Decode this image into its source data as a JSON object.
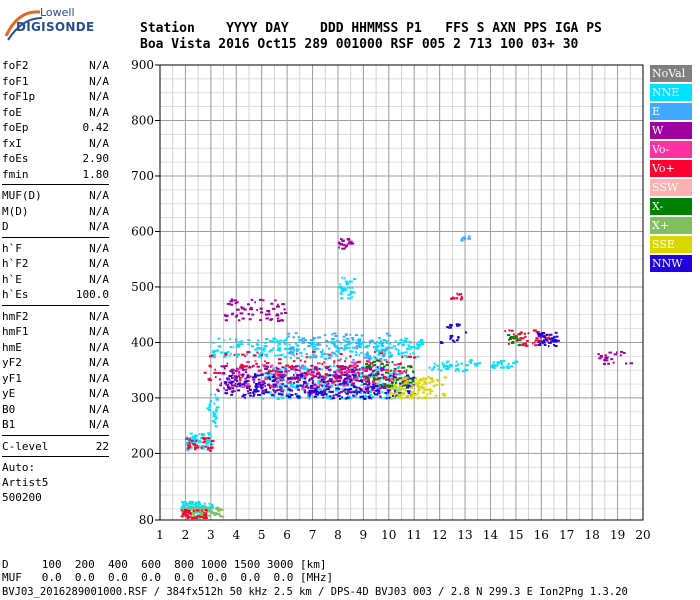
{
  "logo": {
    "line1": "Lowell",
    "line2": "DIGISONDE"
  },
  "header": {
    "labels": [
      "Station",
      "YYYY",
      "DAY",
      "DDD",
      "HHMMSS",
      "P1",
      "FFS",
      "S",
      "AXN",
      "PPS",
      "IGA",
      "PS"
    ],
    "values": [
      "Boa Vista",
      "2016",
      "Oct15",
      "289",
      "001000",
      "RSF",
      "005",
      "2",
      "713",
      "100",
      "03+",
      "30"
    ]
  },
  "params": {
    "group1": [
      {
        "name": "foF2",
        "value": "N/A"
      },
      {
        "name": "foF1",
        "value": "N/A"
      },
      {
        "name": "foF1p",
        "value": "N/A"
      },
      {
        "name": "foE",
        "value": "N/A"
      },
      {
        "name": "foEp",
        "value": "0.42"
      },
      {
        "name": "fxI",
        "value": "N/A"
      },
      {
        "name": "foEs",
        "value": "2.90"
      },
      {
        "name": "fmin",
        "value": "1.80"
      }
    ],
    "group2": [
      {
        "name": "MUF(D)",
        "value": "N/A"
      },
      {
        "name": "M(D)",
        "value": "N/A"
      },
      {
        "name": "D",
        "value": "N/A"
      }
    ],
    "group3": [
      {
        "name": "h`F",
        "value": "N/A"
      },
      {
        "name": "h`F2",
        "value": "N/A"
      },
      {
        "name": "h`E",
        "value": "N/A"
      },
      {
        "name": "h`Es",
        "value": "100.0"
      }
    ],
    "group4": [
      {
        "name": "hmF2",
        "value": "N/A"
      },
      {
        "name": "hmF1",
        "value": "N/A"
      },
      {
        "name": "hmE",
        "value": "N/A"
      },
      {
        "name": "yF2",
        "value": "N/A"
      },
      {
        "name": "yF1",
        "value": "N/A"
      },
      {
        "name": "yE",
        "value": "N/A"
      },
      {
        "name": "B0",
        "value": "N/A"
      },
      {
        "name": "B1",
        "value": "N/A"
      }
    ],
    "group5": [
      {
        "name": "C-level",
        "value": "22"
      }
    ],
    "auto": [
      "Auto:",
      "Artist5",
      "500200"
    ]
  },
  "legend": [
    {
      "label": "NoVal",
      "color": "#808080"
    },
    {
      "label": "NNE",
      "color": "#00e0ff"
    },
    {
      "label": "E",
      "color": "#40a8ff"
    },
    {
      "label": "W",
      "color": "#a000a0"
    },
    {
      "label": "Vo-",
      "color": "#ff30a0"
    },
    {
      "label": "Vo+",
      "color": "#ff0030"
    },
    {
      "label": "SSW",
      "color": "#ffb0b0"
    },
    {
      "label": "X-",
      "color": "#008000"
    },
    {
      "label": "X+",
      "color": "#80c060"
    },
    {
      "label": "SSE",
      "color": "#d8d800"
    },
    {
      "label": "NNW",
      "color": "#2000e0"
    }
  ],
  "footer": {
    "d_row": "D     100  200  400  600  800 1000 1500 3000 [km]",
    "muf_row": "MUF   0.0  0.0  0.0  0.0  0.0  0.0  0.0  0.0 [MHz]",
    "note": "BVJ03_2016289001000.RSF / 384fx512h 50 kHz 2.5 km / DPS-4D BVJ03 003 / 2.8 N 299.3 E Ion2Png 1.3.20"
  },
  "chart_data": {
    "type": "scatter",
    "xlim": [
      1,
      20
    ],
    "ylim": [
      80,
      900
    ],
    "x_ticks": [
      1,
      2,
      3,
      4,
      5,
      6,
      7,
      8,
      9,
      10,
      11,
      12,
      13,
      14,
      15,
      16,
      17,
      18,
      19,
      20
    ],
    "y_ticks": [
      80,
      200,
      300,
      400,
      500,
      600,
      700,
      800,
      900
    ],
    "grid": true,
    "xlabel": "",
    "ylabel": "",
    "clusters": [
      {
        "series": "NNE",
        "x": [
          3.0,
          11.3
        ],
        "y": [
          375,
          410
        ],
        "n": 260
      },
      {
        "series": "NNE",
        "x": [
          5.0,
          10.5
        ],
        "y": [
          300,
          360
        ],
        "n": 320
      },
      {
        "series": "W",
        "x": [
          3.2,
          10.0
        ],
        "y": [
          310,
          360
        ],
        "n": 320
      },
      {
        "series": "NNW",
        "x": [
          3.5,
          11.0
        ],
        "y": [
          300,
          345
        ],
        "n": 260
      },
      {
        "series": "Vo+",
        "x": [
          2.5,
          11.0
        ],
        "y": [
          330,
          385
        ],
        "n": 120
      },
      {
        "series": "Vo-",
        "x": [
          4.0,
          10.5
        ],
        "y": [
          320,
          370
        ],
        "n": 80
      },
      {
        "series": "SSE",
        "x": [
          10.0,
          11.6
        ],
        "y": [
          300,
          340
        ],
        "n": 90
      },
      {
        "series": "X-",
        "x": [
          9.0,
          11.0
        ],
        "y": [
          320,
          370
        ],
        "n": 50
      },
      {
        "series": "E",
        "x": [
          6.0,
          10.0
        ],
        "y": [
          370,
          420
        ],
        "n": 100
      },
      {
        "series": "W",
        "x": [
          3.5,
          6.0
        ],
        "y": [
          440,
          480
        ],
        "n": 60
      },
      {
        "series": "NNE",
        "x": [
          8.0,
          8.6
        ],
        "y": [
          480,
          520
        ],
        "n": 30
      },
      {
        "series": "W",
        "x": [
          8.0,
          8.5
        ],
        "y": [
          570,
          590
        ],
        "n": 20
      },
      {
        "series": "NNE",
        "x": [
          2.0,
          3.0
        ],
        "y": [
          208,
          240
        ],
        "n": 70
      },
      {
        "series": "Vo+",
        "x": [
          2.0,
          3.0
        ],
        "y": [
          205,
          230
        ],
        "n": 30
      },
      {
        "series": "NNE",
        "x": [
          1.8,
          3.0
        ],
        "y": [
          95,
          115
        ],
        "n": 90
      },
      {
        "series": "X+",
        "x": [
          1.8,
          3.4
        ],
        "y": [
          85,
          105
        ],
        "n": 80
      },
      {
        "series": "Vo+",
        "x": [
          1.8,
          2.8
        ],
        "y": [
          85,
          100
        ],
        "n": 40
      },
      {
        "series": "NNE",
        "x": [
          2.8,
          3.2
        ],
        "y": [
          250,
          310
        ],
        "n": 30
      },
      {
        "series": "Vo+",
        "x": [
          14.5,
          16.3
        ],
        "y": [
          395,
          425
        ],
        "n": 40
      },
      {
        "series": "NNW",
        "x": [
          15.8,
          16.6
        ],
        "y": [
          395,
          420
        ],
        "n": 40
      },
      {
        "series": "X-",
        "x": [
          14.6,
          15.2
        ],
        "y": [
          395,
          420
        ],
        "n": 15
      },
      {
        "series": "NNE",
        "x": [
          11.5,
          13.5
        ],
        "y": [
          350,
          370
        ],
        "n": 40
      },
      {
        "series": "NNE",
        "x": [
          14.0,
          15.0
        ],
        "y": [
          355,
          370
        ],
        "n": 30
      },
      {
        "series": "SSE",
        "x": [
          11.2,
          12.2
        ],
        "y": [
          300,
          340
        ],
        "n": 25
      },
      {
        "series": "W",
        "x": [
          18.2,
          19.5
        ],
        "y": [
          362,
          385
        ],
        "n": 25
      },
      {
        "series": "Vo+",
        "x": [
          12.4,
          13.0
        ],
        "y": [
          478,
          490
        ],
        "n": 12
      },
      {
        "series": "NNW",
        "x": [
          12.0,
          13.0
        ],
        "y": [
          400,
          440
        ],
        "n": 20
      },
      {
        "series": "E",
        "x": [
          12.8,
          13.2
        ],
        "y": [
          585,
          595
        ],
        "n": 8
      }
    ]
  }
}
